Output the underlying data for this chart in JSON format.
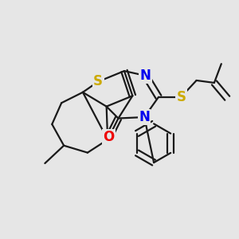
{
  "background_color": "#e6e6e6",
  "atom_colors": {
    "C": "#1a1a1a",
    "N": "#0000ee",
    "S": "#ccaa00",
    "O": "#ee0000"
  },
  "bond_color": "#1a1a1a",
  "bond_width": 1.6,
  "figsize": [
    3.0,
    3.0
  ],
  "dpi": 100,
  "font_size_atom": 12
}
